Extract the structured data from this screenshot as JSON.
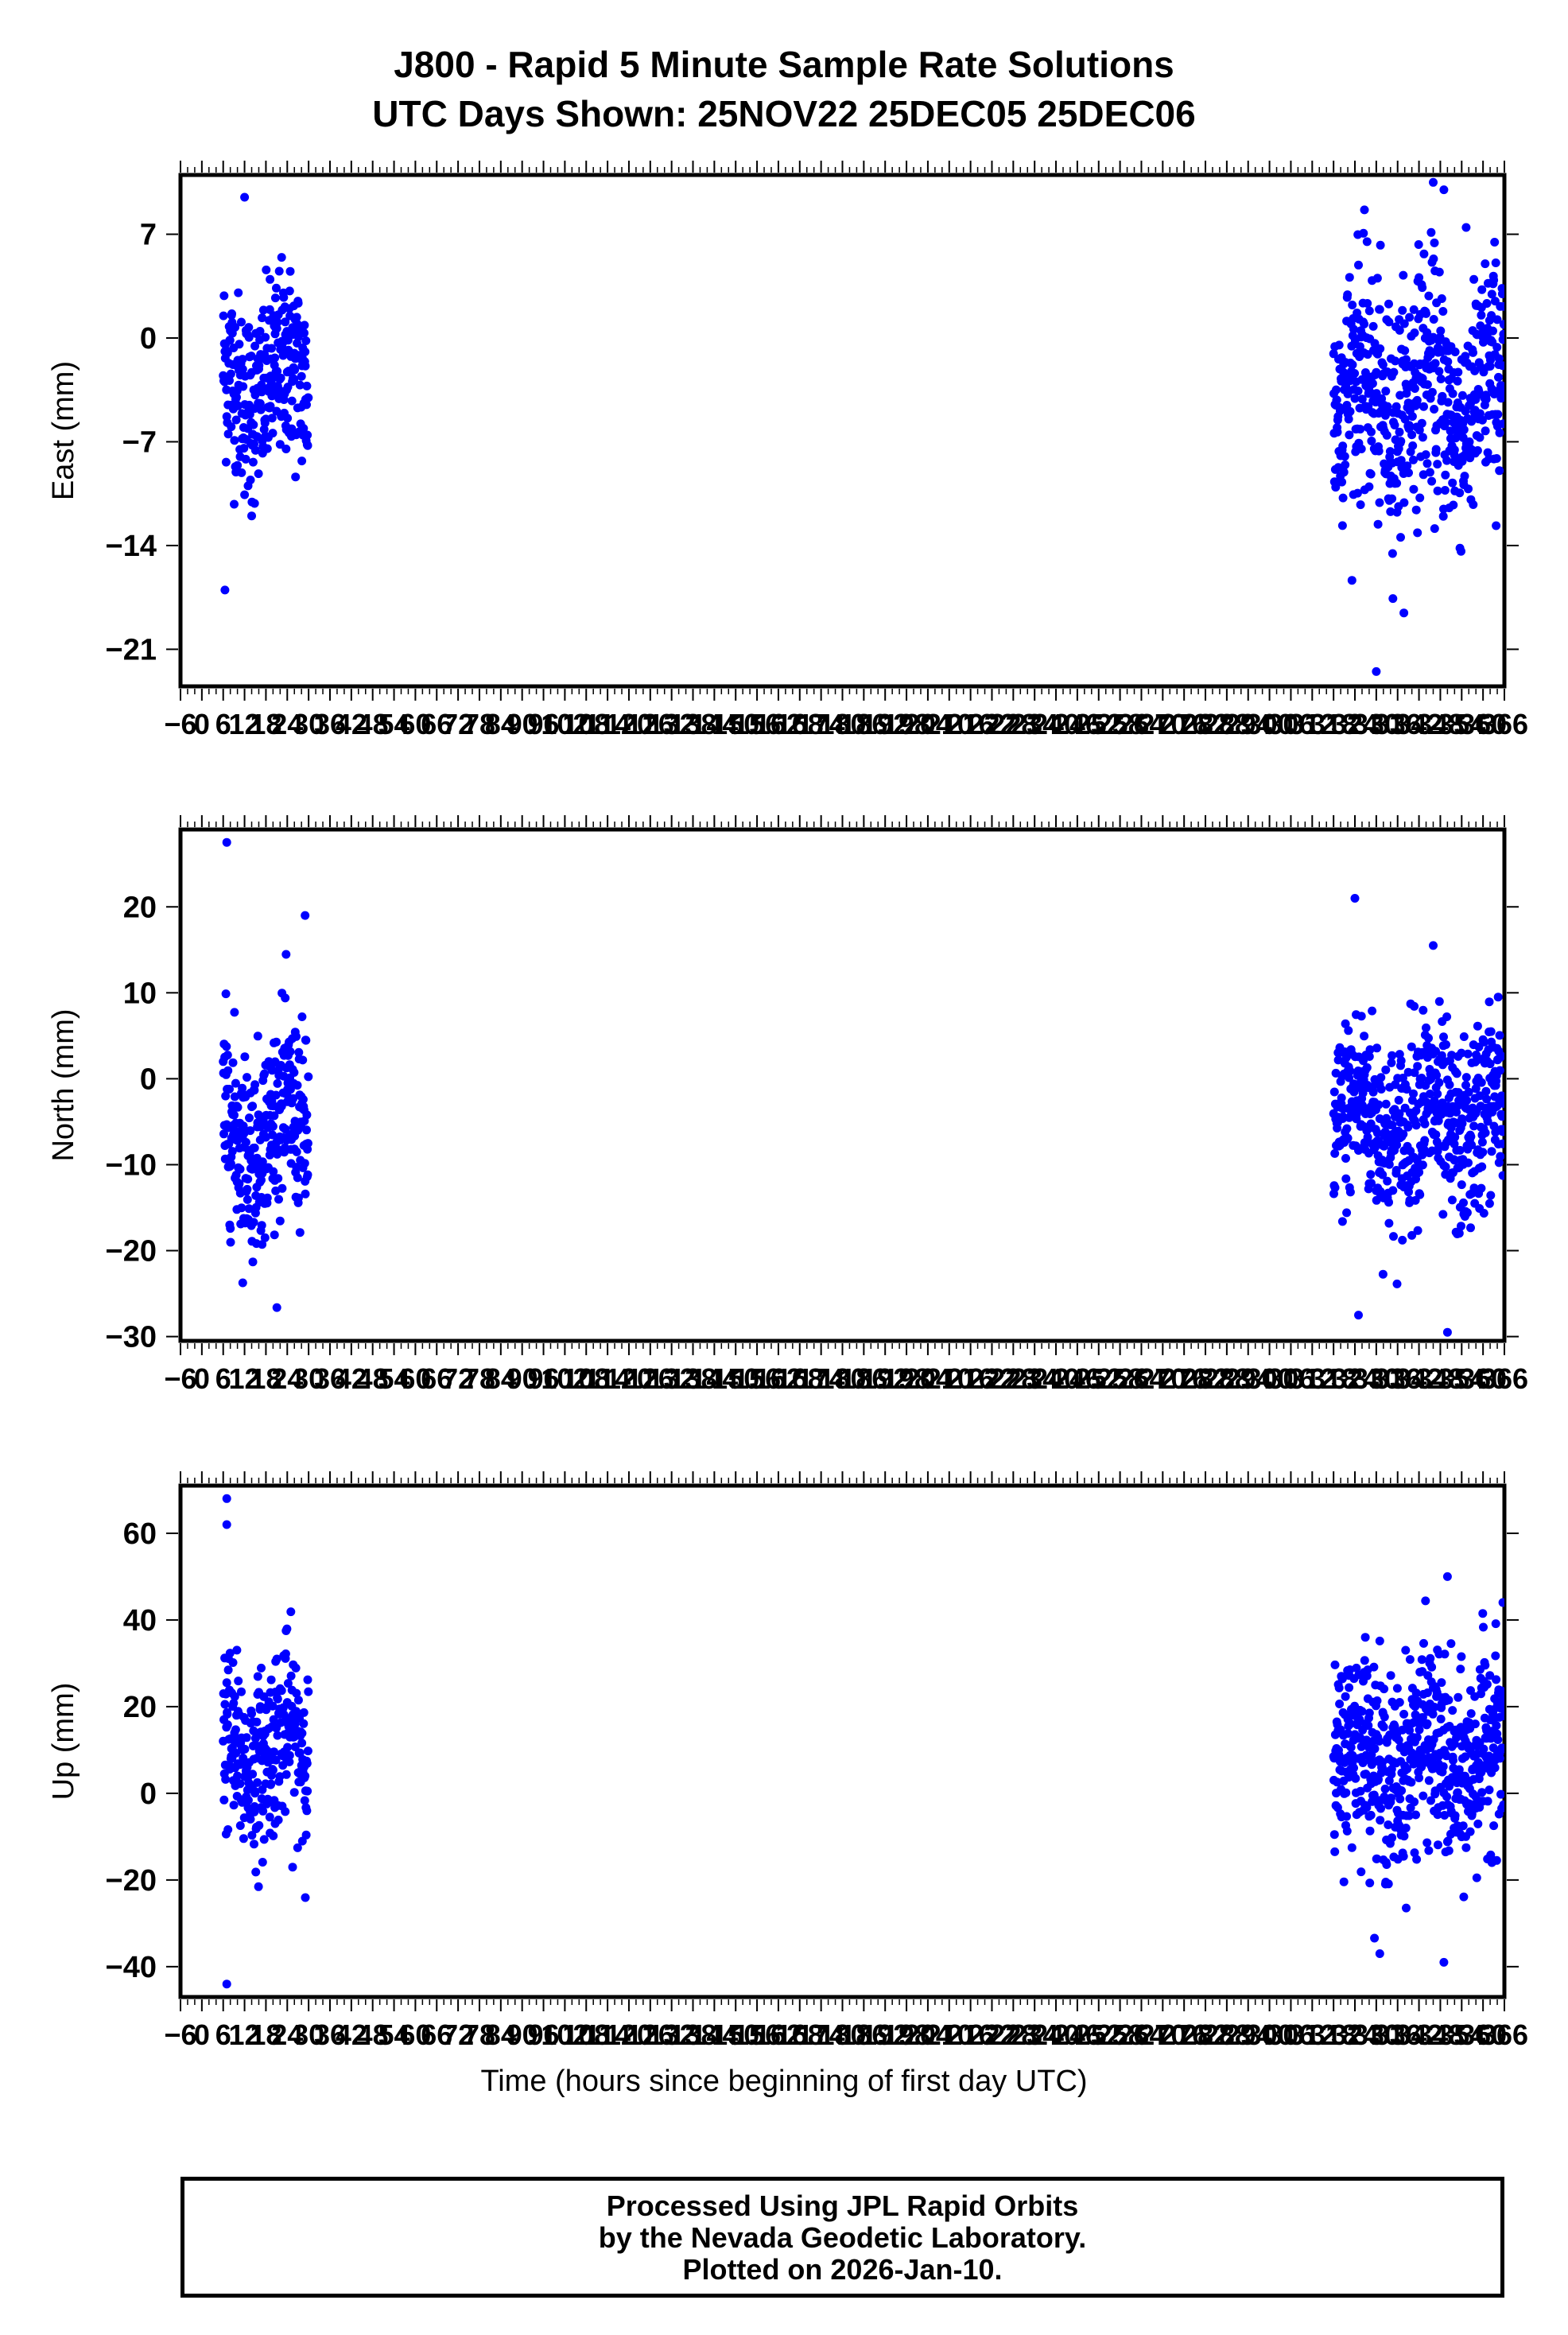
{
  "header": {
    "title": "J800 - Rapid 5 Minute Sample Rate Solutions",
    "subtitle": "UTC Days Shown:  25NOV22 25DEC05 25DEC06"
  },
  "footer": {
    "lines": [
      "Processed Using JPL Rapid Orbits",
      "by the Nevada Geodetic Laboratory.",
      "Plotted on 2026-Jan-10."
    ]
  },
  "colors": {
    "points": "#0000ff",
    "axes": "#000000",
    "background": "#ffffff"
  },
  "chart_data": [
    {
      "type": "scatter",
      "ylabel": "East (mm)",
      "xlabel": "",
      "xlim": [
        -6,
        366
      ],
      "ylim": [
        -23.5,
        11
      ],
      "yticks": [
        7,
        0,
        -7,
        -14,
        -21
      ],
      "xticks_label_step": 6,
      "grid": false,
      "point_color": "#0000ff",
      "clusters": [
        {
          "x_start": 6,
          "x_end": 30,
          "mean": -3,
          "spread": 4
        },
        {
          "x_start": 318,
          "x_end": 366,
          "mean": -4,
          "spread": 5
        }
      ],
      "sample_points": [
        [
          6.5,
          -17
        ],
        [
          12,
          9.5
        ],
        [
          14,
          -12
        ],
        [
          330,
          -22.5
        ],
        [
          346,
          10.5
        ],
        [
          349,
          10
        ]
      ]
    },
    {
      "type": "scatter",
      "ylabel": "North (mm)",
      "xlabel": "",
      "xlim": [
        -6,
        366
      ],
      "ylim": [
        -30.5,
        29
      ],
      "yticks": [
        20,
        10,
        0,
        -10,
        -20,
        -30
      ],
      "xticks_label_step": 6,
      "grid": false,
      "point_color": "#0000ff",
      "clusters": [
        {
          "x_start": 6,
          "x_end": 30,
          "mean": -6,
          "spread": 7
        },
        {
          "x_start": 318,
          "x_end": 366,
          "mean": -5,
          "spread": 7
        }
      ],
      "sample_points": [
        [
          7,
          27.5
        ],
        [
          29,
          19
        ],
        [
          324,
          21
        ],
        [
          325,
          -27.5
        ],
        [
          350,
          -29.5
        ],
        [
          346,
          15.5
        ]
      ]
    },
    {
      "type": "scatter",
      "ylabel": "Up (mm)",
      "xlabel": "Time (hours since beginning of first day UTC)",
      "xlim": [
        -6,
        366
      ],
      "ylim": [
        -47,
        71
      ],
      "yticks": [
        60,
        40,
        20,
        0,
        -20,
        -40
      ],
      "xticks_label_step": 6,
      "grid": false,
      "point_color": "#0000ff",
      "clusters": [
        {
          "x_start": 6,
          "x_end": 30,
          "mean": 10,
          "spread": 13
        },
        {
          "x_start": 318,
          "x_end": 366,
          "mean": 8,
          "spread": 14
        }
      ],
      "sample_points": [
        [
          7,
          68
        ],
        [
          7,
          62
        ],
        [
          7,
          -44
        ],
        [
          331,
          -37
        ],
        [
          349,
          -39
        ],
        [
          350,
          50
        ]
      ]
    }
  ]
}
